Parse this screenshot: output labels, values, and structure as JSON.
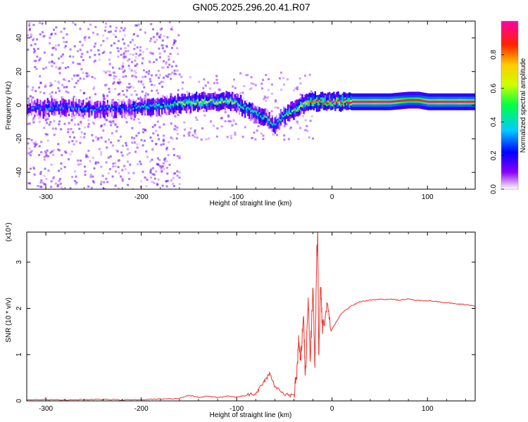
{
  "figure_title": "GN05.2025.296.20.41.R07",
  "chart_data": [
    {
      "type": "heatmap",
      "title": "GN05.2025.296.20.41.R07",
      "xlabel": "Height of straight line (km)",
      "ylabel": "Frequency (Hz)",
      "xlim": [
        -320,
        150
      ],
      "ylim": [
        -50,
        50
      ],
      "xticks": [
        -300,
        -200,
        -100,
        0,
        100
      ],
      "yticks": [
        -40,
        -20,
        0,
        20,
        40
      ],
      "x_tick_labels": [
        "-300",
        "-200",
        "-100",
        "0",
        "100"
      ],
      "y_tick_labels": [
        "-40",
        "-20",
        "0",
        "20",
        "40"
      ],
      "colorbar": {
        "label": "Normalized spectral amplitude",
        "range": [
          0,
          1
        ],
        "ticks": [
          0.0,
          0.2,
          0.4,
          0.6,
          0.8
        ],
        "tick_labels": [
          "0.0",
          "0.2",
          "0.4",
          "0.6",
          "0.8"
        ]
      },
      "ridge": {
        "x": [
          -320,
          -300,
          -280,
          -260,
          -240,
          -220,
          -200,
          -180,
          -160,
          -140,
          -120,
          -110,
          -100,
          -90,
          -80,
          -70,
          -62,
          -58,
          -55,
          -50,
          -45,
          -40,
          -35,
          -30,
          -25,
          -20,
          -10,
          0,
          20,
          40,
          60,
          80,
          90,
          100,
          120,
          150
        ],
        "frequency": [
          -2,
          -2,
          -1,
          -2,
          -2,
          -2,
          -1,
          0,
          1,
          2,
          2,
          3,
          1,
          -2,
          -5,
          -8,
          -12,
          -11,
          -8,
          -6,
          -4,
          -3,
          -1,
          1,
          2,
          2,
          2,
          2,
          2,
          2,
          2,
          3,
          3,
          2,
          2,
          2
        ],
        "amplitude": [
          0.25,
          0.3,
          0.3,
          0.3,
          0.3,
          0.3,
          0.35,
          0.45,
          0.55,
          0.6,
          0.6,
          0.6,
          0.55,
          0.45,
          0.45,
          0.5,
          0.45,
          0.35,
          0.35,
          0.45,
          0.55,
          0.6,
          0.65,
          0.7,
          0.8,
          0.85,
          0.9,
          0.95,
          1.0,
          1.0,
          1.0,
          0.9,
          0.9,
          1.0,
          1.0,
          1.0
        ]
      }
    },
    {
      "type": "line",
      "xlabel": "Height of straight line (km)",
      "ylabel": "SNR (10 * v/v)",
      "y_multiplier": "(x10⁴)",
      "xlim": [
        -320,
        150
      ],
      "ylim": [
        0,
        3.65
      ],
      "xticks": [
        -300,
        -200,
        -100,
        0,
        100
      ],
      "yticks": [
        0,
        1,
        2,
        3
      ],
      "x_tick_labels": [
        "-300",
        "-200",
        "-100",
        "0",
        "100"
      ],
      "y_tick_labels": [
        "0",
        "1",
        "2",
        "3"
      ],
      "series": [
        {
          "name": "SNR",
          "color": "#e8302b",
          "x": [
            -320,
            -300,
            -280,
            -260,
            -240,
            -220,
            -200,
            -180,
            -160,
            -150,
            -140,
            -130,
            -120,
            -110,
            -100,
            -90,
            -80,
            -75,
            -70,
            -65,
            -60,
            -50,
            -40,
            -37,
            -35,
            -33,
            -30,
            -28,
            -25,
            -23,
            -20,
            -18,
            -16,
            -15,
            -14,
            -12,
            -10,
            -5,
            0,
            10,
            20,
            30,
            40,
            50,
            60,
            70,
            80,
            90,
            100,
            110,
            120,
            130,
            140,
            150
          ],
          "y": [
            0.02,
            0.03,
            0.02,
            0.03,
            0.03,
            0.02,
            0.03,
            0.04,
            0.05,
            0.12,
            0.08,
            0.1,
            0.07,
            0.1,
            0.08,
            0.12,
            0.15,
            0.3,
            0.45,
            0.6,
            0.3,
            0.15,
            0.1,
            0.6,
            1.3,
            0.8,
            1.9,
            0.5,
            2.2,
            0.9,
            2.4,
            0.7,
            3.2,
            3.65,
            1.0,
            2.5,
            1.6,
            2.0,
            1.55,
            1.9,
            2.05,
            2.15,
            2.18,
            2.2,
            2.2,
            2.18,
            2.2,
            2.17,
            2.17,
            2.15,
            2.12,
            2.1,
            2.08,
            2.05
          ]
        }
      ]
    }
  ]
}
